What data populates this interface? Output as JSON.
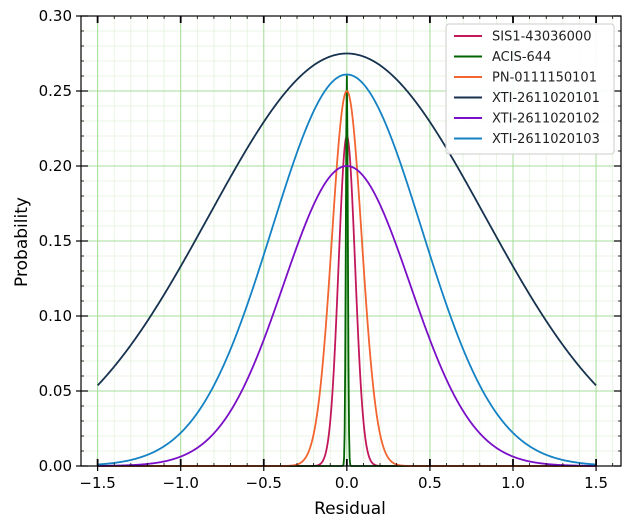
{
  "chart_data": {
    "type": "line",
    "title": "",
    "xlabel": "Residual",
    "ylabel": "Probability",
    "xlim": [
      -1.6,
      1.65
    ],
    "ylim": [
      0.0,
      0.3
    ],
    "xticks": [
      -1.5,
      -1.0,
      -0.5,
      0.0,
      0.5,
      1.0,
      1.5
    ],
    "xtick_labels": [
      "−1.5",
      "−1.0",
      "−0.5",
      "0.0",
      "0.5",
      "1.0",
      "1.5"
    ],
    "yticks": [
      0.0,
      0.05,
      0.1,
      0.15,
      0.2,
      0.25,
      0.3
    ],
    "ytick_labels": [
      "0.00",
      "0.05",
      "0.10",
      "0.15",
      "0.20",
      "0.25",
      "0.30"
    ],
    "grid": true,
    "grid_minor": true,
    "grid_color": "#7ccf6a",
    "legend_position": "top-right",
    "x_domain": [
      -1.5,
      1.5
    ],
    "series": [
      {
        "name": "SIS1-43036000",
        "color": "#c2185b",
        "peak": 0.22,
        "sigma": 0.05
      },
      {
        "name": "ACIS-644",
        "color": "#006400",
        "peak": 0.26,
        "sigma": 0.006
      },
      {
        "name": "PN-0111150101",
        "color": "#f26430",
        "peak": 0.25,
        "sigma": 0.09
      },
      {
        "name": "XTI-2611020101",
        "color": "#17324f",
        "peak": 0.275,
        "sigma": 0.83
      },
      {
        "name": "XTI-2611020102",
        "color": "#7a0fc7",
        "peak": 0.2,
        "sigma": 0.38
      },
      {
        "name": "XTI-2611020103",
        "color": "#1482c4",
        "peak": 0.261,
        "sigma": 0.45
      }
    ]
  }
}
